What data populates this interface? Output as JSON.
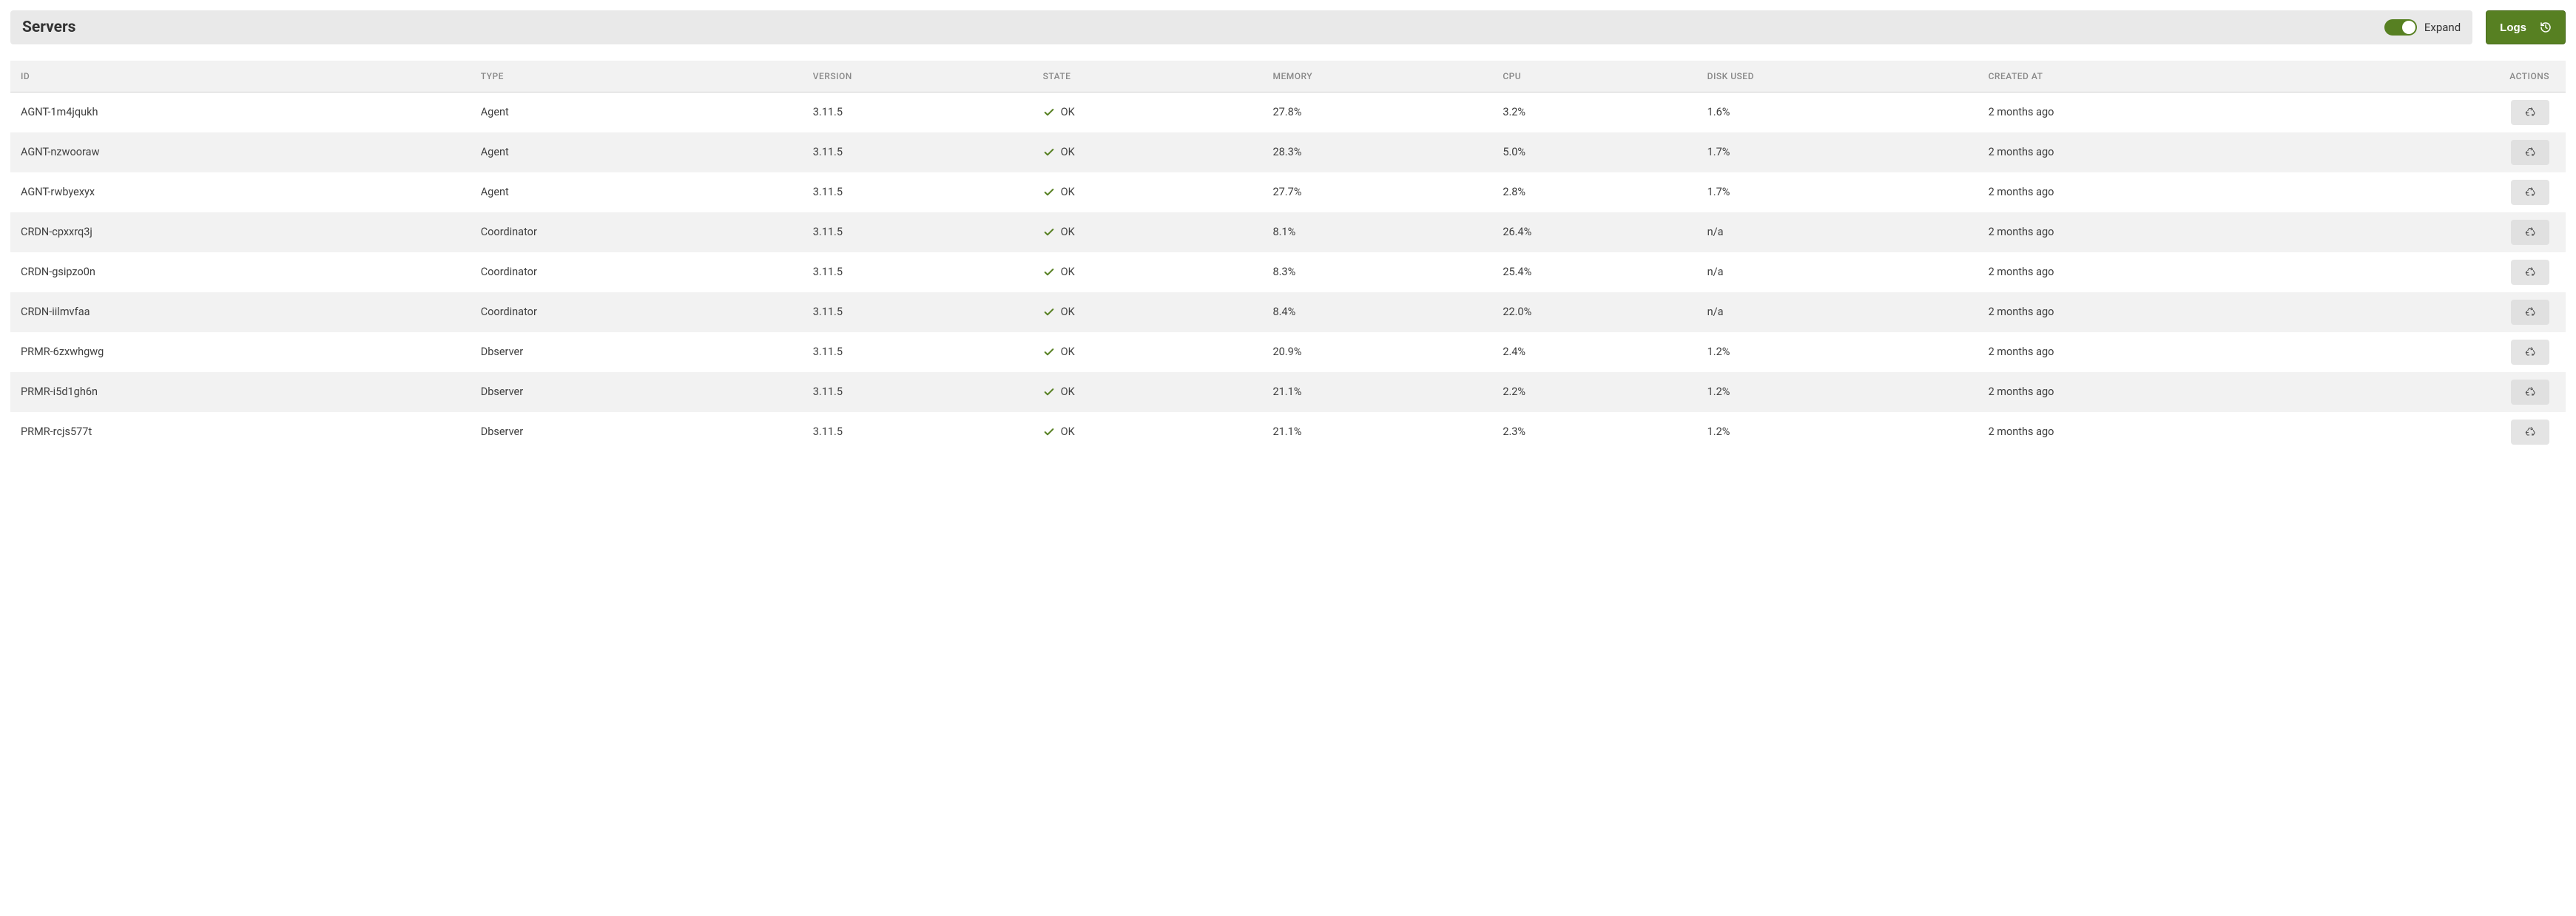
{
  "header": {
    "title": "Servers",
    "expand_label": "Expand",
    "logs_button": "Logs"
  },
  "colors": {
    "accent": "#578022",
    "header_bg": "#e9e9e9",
    "row_alt_bg": "#f2f2f2",
    "text": "#333333",
    "muted": "#888888"
  },
  "table": {
    "columns": [
      {
        "key": "id",
        "label": "ID"
      },
      {
        "key": "type",
        "label": "TYPE"
      },
      {
        "key": "version",
        "label": "VERSION"
      },
      {
        "key": "state",
        "label": "STATE"
      },
      {
        "key": "memory",
        "label": "MEMORY"
      },
      {
        "key": "cpu",
        "label": "CPU"
      },
      {
        "key": "disk",
        "label": "DISK USED"
      },
      {
        "key": "created",
        "label": "CREATED AT"
      },
      {
        "key": "actions",
        "label": "ACTIONS"
      }
    ],
    "rows": [
      {
        "id": "AGNT-1m4jqukh",
        "type": "Agent",
        "version": "3.11.5",
        "state": "OK",
        "memory": "27.8%",
        "cpu": "3.2%",
        "disk": "1.6%",
        "created": "2 months ago"
      },
      {
        "id": "AGNT-nzwooraw",
        "type": "Agent",
        "version": "3.11.5",
        "state": "OK",
        "memory": "28.3%",
        "cpu": "5.0%",
        "disk": "1.7%",
        "created": "2 months ago"
      },
      {
        "id": "AGNT-rwbyexyx",
        "type": "Agent",
        "version": "3.11.5",
        "state": "OK",
        "memory": "27.7%",
        "cpu": "2.8%",
        "disk": "1.7%",
        "created": "2 months ago"
      },
      {
        "id": "CRDN-cpxxrq3j",
        "type": "Coordinator",
        "version": "3.11.5",
        "state": "OK",
        "memory": "8.1%",
        "cpu": "26.4%",
        "disk": "n/a",
        "created": "2 months ago"
      },
      {
        "id": "CRDN-gsipzo0n",
        "type": "Coordinator",
        "version": "3.11.5",
        "state": "OK",
        "memory": "8.3%",
        "cpu": "25.4%",
        "disk": "n/a",
        "created": "2 months ago"
      },
      {
        "id": "CRDN-iilmvfaa",
        "type": "Coordinator",
        "version": "3.11.5",
        "state": "OK",
        "memory": "8.4%",
        "cpu": "22.0%",
        "disk": "n/a",
        "created": "2 months ago"
      },
      {
        "id": "PRMR-6zxwhgwg",
        "type": "Dbserver",
        "version": "3.11.5",
        "state": "OK",
        "memory": "20.9%",
        "cpu": "2.4%",
        "disk": "1.2%",
        "created": "2 months ago"
      },
      {
        "id": "PRMR-i5d1gh6n",
        "type": "Dbserver",
        "version": "3.11.5",
        "state": "OK",
        "memory": "21.1%",
        "cpu": "2.2%",
        "disk": "1.2%",
        "created": "2 months ago"
      },
      {
        "id": "PRMR-rcjs577t",
        "type": "Dbserver",
        "version": "3.11.5",
        "state": "OK",
        "memory": "21.1%",
        "cpu": "2.3%",
        "disk": "1.2%",
        "created": "2 months ago"
      }
    ]
  }
}
